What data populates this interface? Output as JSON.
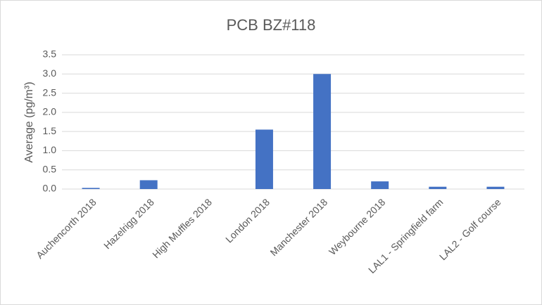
{
  "chart_data": {
    "type": "bar",
    "title": "PCB BZ#118",
    "y_label": "Average (pg/m³)",
    "categories": [
      "Auchencorth 2018",
      "Hazelrigg 2018",
      "High Muffles 2018",
      "London 2018",
      "Manchester 2018",
      "Weybourne 2018",
      "LAL1 - Springfield farm",
      "LAL2 - Golf course"
    ],
    "values": [
      0.03,
      0.23,
      0,
      1.55,
      3.0,
      0.2,
      0.06,
      0.06
    ],
    "color": "#4472c4",
    "ylim": [
      0,
      3.5
    ],
    "yticks": [
      {
        "value": 0,
        "label": "0.0"
      },
      0.5,
      {
        "value": 1,
        "label": "1.0"
      },
      1.5,
      {
        "value": 2,
        "label": "2.0"
      },
      2.5,
      {
        "value": 3,
        "label": "3.0"
      },
      3.5
    ],
    "grid": true
  }
}
